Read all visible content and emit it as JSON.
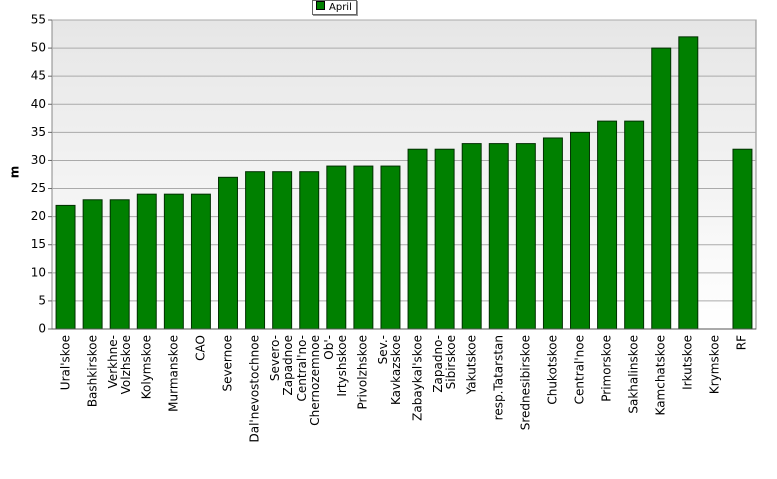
{
  "chart_data": {
    "type": "bar",
    "y_label": "m",
    "categories": [
      "Ural'skoe",
      "Bashkirskoe",
      "Verkhne-\nVolzhskoe",
      "Kolymskoe",
      "Murmanskoe",
      "CAO",
      "Severnoe",
      "Dal'nevostochnoe",
      "Severo-\nZapadnoe",
      "Central'no-\nChernozemnoe",
      "Ob'-\nIrtyshskoe",
      "Privolzhskoe",
      "Sev.-\nKavkazskoe",
      "Zabaykal'skoe",
      "Zapadno-\nSibirskoe",
      "Yakutskoe",
      "resp.Tatarstan",
      "Srednesibirskoe",
      "Chukotskoe",
      "Central'noe",
      "Primorskoe",
      "Sakhalinskoe",
      "Kamchatskoe",
      "Irkutskoe",
      "Krymskoe",
      "RF"
    ],
    "series": [
      {
        "name": "April",
        "color": "#008000",
        "values": [
          22,
          23,
          23,
          24,
          24,
          24,
          27,
          28,
          28,
          28,
          29,
          29,
          29,
          32,
          32,
          33,
          33,
          33,
          34,
          35,
          37,
          37,
          50,
          52,
          null,
          32
        ]
      }
    ],
    "ylim": [
      0,
      55
    ],
    "yticks": [
      0,
      5,
      10,
      15,
      20,
      25,
      30,
      35,
      40,
      45,
      50,
      55
    ],
    "grid": true
  }
}
